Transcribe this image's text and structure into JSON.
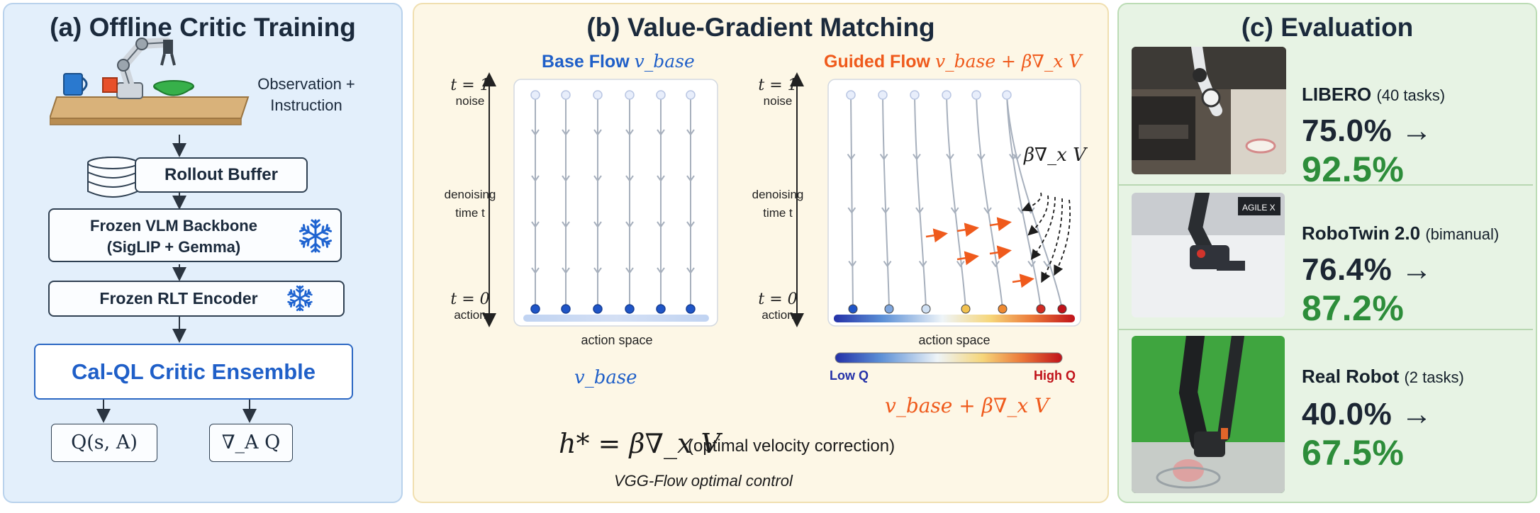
{
  "panel_a": {
    "title": "(a) Offline Critic Training",
    "observation": [
      "Observation +",
      "Instruction"
    ],
    "rollout_buffer": "Rollout Buffer",
    "vlm_backbone": [
      "Frozen VLM Backbone",
      "(SigLIP + Gemma)"
    ],
    "rlt_encoder": "Frozen RLT Encoder",
    "critic": "Cal-QL Critic Ensemble",
    "q_output": "Q(s, A)",
    "grad_output": "∇_A Q"
  },
  "panel_b": {
    "title": "(b) Value-Gradient Matching",
    "base": {
      "title_text": "Base Flow",
      "title_math": "v_base",
      "t1": "t = 1",
      "noise": "noise",
      "denoise": [
        "denoising",
        "time t"
      ],
      "t0": "t = 0",
      "action": "action",
      "axis_label": "action space",
      "caption": "v_base"
    },
    "guided": {
      "title_text": "Guided Flow",
      "title_math": "v_base + β∇_x V",
      "t1": "t = 1",
      "noise": "noise",
      "denoise": [
        "denoising",
        "time t"
      ],
      "t0": "t = 0",
      "action": "action",
      "axis_label": "action space",
      "grad_label": "β∇_x V",
      "low_q": "Low Q",
      "high_q": "High Q",
      "caption": "v_base + β∇_x V"
    },
    "equation": "h* = β∇_x V",
    "equation_note": "(optimal velocity correction)",
    "footer": "VGG-Flow optimal control"
  },
  "panel_c": {
    "title": "(c) Evaluation",
    "benchmarks": [
      {
        "name": "LIBERO",
        "note": "(40 tasks)",
        "before": "75.0%",
        "after": "92.5%"
      },
      {
        "name": "RoboTwin 2.0",
        "note": "(bimanual)",
        "before": "76.4%",
        "after": "87.2%"
      },
      {
        "name": "Real Robot",
        "note": "(2 tasks)",
        "before": "40.0%",
        "after": "67.5%"
      }
    ],
    "arrow": "→",
    "robot_brand": "AGILE X"
  },
  "colors": {
    "blue_accent": "#1f5fc8",
    "orange_accent": "#ef5a1c",
    "green_result": "#2d8d3a",
    "flow_line": "#a7b0bd"
  },
  "icons": [
    "robot-arm-icon",
    "database-icon",
    "snowflake-icon",
    "gradient-arrow-icon"
  ]
}
